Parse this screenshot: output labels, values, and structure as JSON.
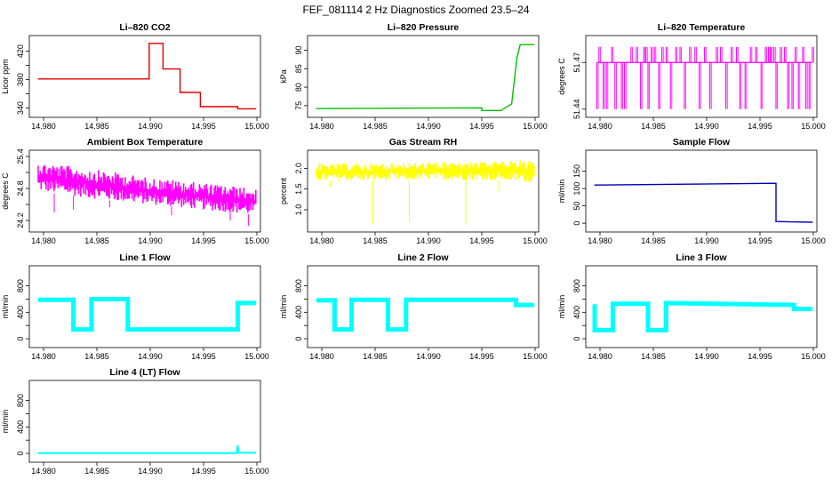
{
  "page": {
    "title": "FEF_081114  2 Hz Diagnostics Zoomed 23.5–24"
  },
  "chart_data": [
    {
      "type": "line",
      "title": "Li–820 CO2",
      "ylabel": "Licor ppm",
      "color": "#e00000",
      "xlim": [
        14.979,
        15.0
      ],
      "xticks": [
        14.98,
        14.985,
        14.99,
        14.995,
        15.0
      ],
      "xticklabels": [
        "14.980",
        "14.985",
        "14.990",
        "14.995",
        "15.000"
      ],
      "ylim": [
        332,
        437
      ],
      "yticks": [
        340,
        380,
        420
      ],
      "yticklabels": [
        "340",
        "380",
        "420"
      ],
      "yticks_minor": [
        360,
        400
      ],
      "series": [
        {
          "name": "CO2",
          "style": "step",
          "x": [
            14.9795,
            14.9899,
            14.9899,
            14.9912,
            14.9912,
            14.9928,
            14.9928,
            14.9947,
            14.9947,
            14.9982,
            14.9982,
            14.9999
          ],
          "y": [
            381,
            381,
            431,
            431,
            395,
            395,
            362,
            362,
            342,
            342,
            339,
            339
          ]
        }
      ]
    },
    {
      "type": "line",
      "title": "Li–820 Pressure",
      "ylabel": "kPa",
      "color": "#00c000",
      "xlim": [
        14.979,
        15.0
      ],
      "xticks": [
        14.98,
        14.985,
        14.99,
        14.995,
        15.0
      ],
      "xticklabels": [
        "14.980",
        "14.985",
        "14.990",
        "14.995",
        "15.000"
      ],
      "ylim": [
        72.8,
        93
      ],
      "yticks": [
        75,
        80,
        85,
        90
      ],
      "yticklabels": [
        "75",
        "80",
        "85",
        "90"
      ],
      "series": [
        {
          "name": "Pressure",
          "style": "line",
          "x": [
            14.9795,
            14.995,
            14.995,
            14.9968,
            14.9978,
            14.9983,
            14.9986,
            14.9999
          ],
          "y": [
            74.2,
            74.4,
            73.7,
            73.7,
            75.5,
            88,
            91.5,
            91.5
          ]
        }
      ]
    },
    {
      "type": "line",
      "title": "Li–820 Temperature",
      "ylabel": "degrees C",
      "color": "#ff00ff",
      "xlim": [
        14.979,
        15.0
      ],
      "xticks": [
        14.98,
        14.985,
        14.99,
        14.995,
        15.0
      ],
      "xticklabels": [
        "14.980",
        "14.985",
        "14.990",
        "14.995",
        "15.000"
      ],
      "ylim": [
        51.437,
        51.485
      ],
      "yticks": [
        51.44,
        51.47
      ],
      "yticklabels": [
        "51.44",
        "51.47"
      ],
      "ylevels": [
        51.44,
        51.47,
        51.48
      ],
      "baseline": 51.47,
      "series": [
        {
          "name": "Temperature",
          "style": "spikes",
          "x": [
            14.9797,
            14.9799,
            14.9803,
            14.9806,
            14.9811,
            14.9814,
            14.982,
            14.9823,
            14.9829,
            14.9834,
            14.9838,
            14.9841,
            14.9843,
            14.9845,
            14.9848,
            14.9851,
            14.9855,
            14.9858,
            14.9862,
            14.9866,
            14.9871,
            14.9875,
            14.9879,
            14.9884,
            14.9889,
            14.9893,
            14.9898,
            14.9903,
            14.9909,
            14.9913,
            14.9918,
            14.9923,
            14.9928,
            14.9931,
            14.9936,
            14.9941,
            14.9946,
            14.9951,
            14.9955,
            14.9958,
            14.996,
            14.9963,
            14.9965,
            14.9969,
            14.9973,
            14.9976,
            14.998,
            14.9983,
            14.9986,
            14.999,
            14.9993,
            14.9996,
            14.9999
          ],
          "y": [
            51.44,
            51.48,
            51.44,
            51.44,
            51.48,
            51.44,
            51.44,
            51.44,
            51.48,
            51.48,
            51.44,
            51.48,
            51.48,
            51.44,
            51.48,
            51.48,
            51.44,
            51.48,
            51.48,
            51.44,
            51.48,
            51.48,
            51.44,
            51.48,
            51.48,
            51.44,
            51.48,
            51.44,
            51.48,
            51.48,
            51.44,
            51.48,
            51.48,
            51.44,
            51.44,
            51.48,
            51.48,
            51.44,
            51.48,
            51.48,
            51.48,
            51.48,
            51.44,
            51.48,
            51.48,
            51.44,
            51.44,
            51.48,
            51.44,
            51.48,
            51.44,
            51.44,
            51.48
          ]
        }
      ]
    },
    {
      "type": "line",
      "title": "Ambient Box Temperature",
      "ylabel": "degrees C",
      "color": "#ff00ff",
      "xlim": [
        14.979,
        15.0
      ],
      "xticks": [
        14.98,
        14.985,
        14.99,
        14.995,
        15.0
      ],
      "xticklabels": [
        "14.980",
        "14.985",
        "14.990",
        "14.995",
        "15.000"
      ],
      "ylim": [
        24.05,
        25.45
      ],
      "yticks": [
        24.2,
        24.8,
        25.4
      ],
      "yticklabels": [
        "24.2",
        "24.8",
        "25.4"
      ],
      "yticks_minor": [
        24.5,
        25.1
      ],
      "series": [
        {
          "name": "Ambient Box Temperature",
          "style": "band",
          "x": [
            14.9795,
            14.985,
            14.99,
            14.995,
            14.9999
          ],
          "ymin": [
            24.75,
            24.6,
            24.5,
            24.4,
            24.3
          ],
          "ymax": [
            25.3,
            25.15,
            25.0,
            24.9,
            24.8
          ],
          "outliers_low": [
            [
              14.981,
              24.35
            ],
            [
              14.9828,
              24.4
            ],
            [
              14.9862,
              24.45
            ],
            [
              14.992,
              24.3
            ],
            [
              14.9975,
              24.2
            ],
            [
              14.9992,
              24.1
            ]
          ]
        }
      ]
    },
    {
      "type": "line",
      "title": "Gas Stream RH",
      "ylabel": "percent",
      "color": "#ffff00",
      "xlim": [
        14.979,
        15.0
      ],
      "xticks": [
        14.98,
        14.985,
        14.99,
        14.995,
        15.0
      ],
      "xticklabels": [
        "14.980",
        "14.985",
        "14.990",
        "14.995",
        "15.000"
      ],
      "ylim": [
        0.55,
        2.35
      ],
      "yticks": [
        1.0,
        1.5,
        2.0
      ],
      "yticklabels": [
        "1.0",
        "1.5",
        "2.0"
      ],
      "series": [
        {
          "name": "RH",
          "style": "band",
          "x": [
            14.9795,
            14.985,
            14.99,
            14.995,
            14.9985,
            14.9999
          ],
          "ymin": [
            1.7,
            1.7,
            1.72,
            1.72,
            1.68,
            1.65
          ],
          "ymax": [
            2.12,
            2.12,
            2.15,
            2.15,
            2.2,
            2.2
          ],
          "outliers_low": [
            [
              14.9848,
              0.65
            ],
            [
              14.9882,
              0.7
            ],
            [
              14.9935,
              0.65
            ],
            [
              14.9808,
              1.55
            ],
            [
              14.9966,
              1.45
            ]
          ]
        }
      ]
    },
    {
      "type": "line",
      "title": "Sample Flow",
      "ylabel": "ml/min",
      "color": "#0000c0",
      "xlim": [
        14.979,
        15.0
      ],
      "xticks": [
        14.98,
        14.985,
        14.99,
        14.995,
        15.0
      ],
      "xticklabels": [
        "14.980",
        "14.985",
        "14.990",
        "14.995",
        "15.000"
      ],
      "ylim": [
        -15,
        200
      ],
      "yticks": [
        0,
        50,
        100,
        150
      ],
      "yticklabels": [
        "0",
        "50",
        "100",
        "150"
      ],
      "series": [
        {
          "name": "Sample Flow",
          "style": "line",
          "x": [
            14.9795,
            14.9965,
            14.9965,
            14.9999
          ],
          "y": [
            110,
            115,
            5,
            3
          ]
        }
      ]
    },
    {
      "type": "line",
      "title": "Line 1 Flow",
      "ylabel": "ml/min",
      "color": "#00ffff",
      "xlim": [
        14.979,
        15.0
      ],
      "xticks": [
        14.98,
        14.985,
        14.99,
        14.995,
        15.0
      ],
      "xticklabels": [
        "14.980",
        "14.985",
        "14.990",
        "14.995",
        "15.000"
      ],
      "ylim": [
        -80,
        1050
      ],
      "yticks": [
        0,
        400,
        800
      ],
      "yticklabels": [
        "0",
        "400",
        "800"
      ],
      "yticks_minor": [
        200,
        600
      ],
      "series": [
        {
          "name": "Line 1 Flow",
          "style": "step",
          "thick": 5,
          "x": [
            14.9795,
            14.9828,
            14.9828,
            14.9845,
            14.9845,
            14.9879,
            14.9879,
            14.9982,
            14.9982,
            14.9999
          ],
          "y": [
            590,
            590,
            140,
            140,
            600,
            600,
            140,
            140,
            540,
            540
          ]
        }
      ]
    },
    {
      "type": "line",
      "title": "Line 2 Flow",
      "ylabel": "ml/min",
      "color": "#00ffff",
      "xlim": [
        14.979,
        15.0
      ],
      "xticks": [
        14.98,
        14.985,
        14.99,
        14.995,
        15.0
      ],
      "xticklabels": [
        "14.980",
        "14.985",
        "14.990",
        "14.995",
        "15.000"
      ],
      "ylim": [
        -80,
        1050
      ],
      "yticks": [
        0,
        400,
        800
      ],
      "yticklabels": [
        "0",
        "400",
        "800"
      ],
      "yticks_minor": [
        200,
        600
      ],
      "series": [
        {
          "name": "Line 2 Flow",
          "style": "step",
          "thick": 5,
          "x": [
            14.9795,
            14.9812,
            14.9812,
            14.9828,
            14.9828,
            14.9862,
            14.9862,
            14.9879,
            14.9879,
            14.9982,
            14.9982,
            14.9999
          ],
          "y": [
            580,
            580,
            140,
            140,
            590,
            590,
            140,
            140,
            590,
            590,
            510,
            510
          ]
        }
      ]
    },
    {
      "type": "line",
      "title": "Line 3 Flow",
      "ylabel": "ml/min",
      "color": "#00ffff",
      "xlim": [
        14.979,
        15.0
      ],
      "xticks": [
        14.98,
        14.985,
        14.99,
        14.995,
        15.0
      ],
      "xticklabels": [
        "14.980",
        "14.985",
        "14.990",
        "14.995",
        "15.000"
      ],
      "ylim": [
        -80,
        1050
      ],
      "yticks": [
        0,
        400,
        800
      ],
      "yticklabels": [
        "0",
        "400",
        "800"
      ],
      "yticks_minor": [
        200,
        600
      ],
      "series": [
        {
          "name": "Line 3 Flow",
          "style": "step",
          "thick": 5,
          "x": [
            14.9795,
            14.9795,
            14.9812,
            14.9812,
            14.9845,
            14.9845,
            14.9862,
            14.9862,
            14.9982,
            14.9982,
            14.9999
          ],
          "y": [
            520,
            130,
            130,
            530,
            530,
            130,
            130,
            540,
            510,
            450,
            450
          ]
        }
      ]
    },
    {
      "type": "line",
      "title": "Line 4 (LT) Flow",
      "ylabel": "ml/min",
      "color": "#00ffff",
      "xlim": [
        14.979,
        15.0
      ],
      "xticks": [
        14.98,
        14.985,
        14.99,
        14.995,
        15.0
      ],
      "xticklabels": [
        "14.980",
        "14.985",
        "14.990",
        "14.995",
        "15.000"
      ],
      "ylim": [
        -80,
        1050
      ],
      "yticks": [
        0,
        400,
        800
      ],
      "yticklabels": [
        "0",
        "400",
        "800"
      ],
      "yticks_minor": [
        200,
        600
      ],
      "series": [
        {
          "name": "Line 4 Flow",
          "style": "line",
          "thick": 2,
          "x": [
            14.9795,
            14.9981,
            14.9982,
            14.9983,
            14.9999
          ],
          "y": [
            5,
            5,
            120,
            10,
            8
          ]
        }
      ]
    }
  ]
}
